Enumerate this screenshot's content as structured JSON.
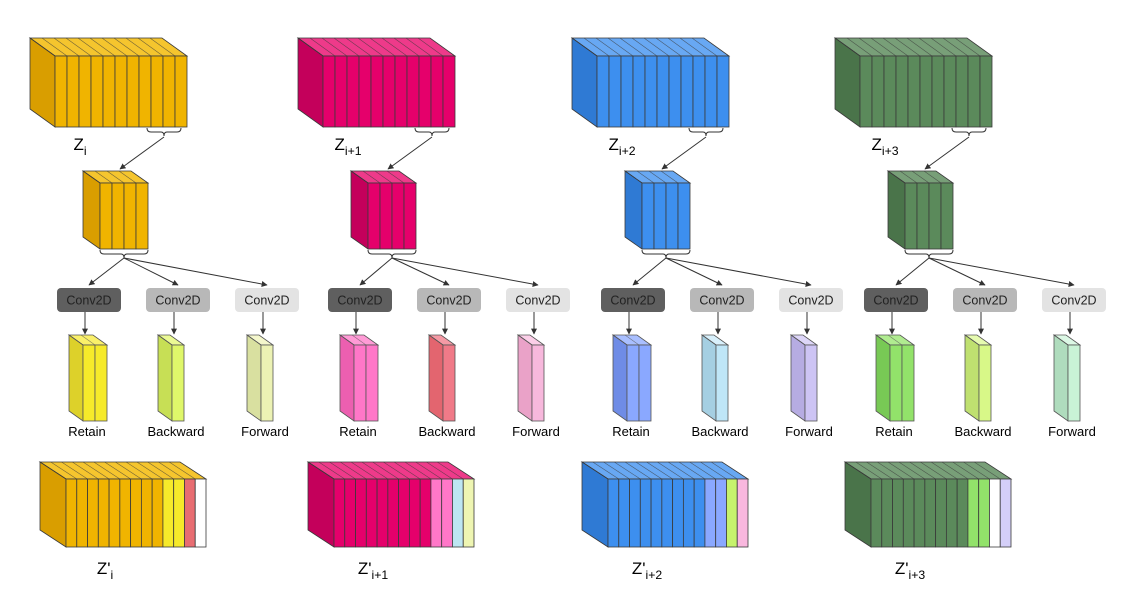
{
  "conv_label": "Conv2D",
  "branch_labels": [
    "Retain",
    "Backward",
    "Forward"
  ],
  "button_colors": [
    "#5f5f5f",
    "#b8b8b8",
    "#e3e3e3"
  ],
  "columns": [
    {
      "id": "z-i",
      "z_base": "Z",
      "z_sub": "i",
      "out_base": "Z'",
      "out_sub": "i",
      "color": "#f0b400",
      "side": "#d99e00",
      "top": "#f5c52e",
      "branch_colors": [
        "#f6ea2a",
        "#dff76a",
        "#ecf2b4"
      ],
      "branch_side_colors": [
        "#ddd12a",
        "#c7df55",
        "#d9e0a0"
      ],
      "branch_top_colors": [
        "#faf06a",
        "#ebfa94",
        "#f4f7cc"
      ],
      "out_extra_colors": [
        "#f6ea2a",
        "#f6ea2a",
        "#e86d72",
        "#ffffff"
      ]
    },
    {
      "id": "z-i1",
      "z_base": "Z",
      "z_sub": "i+1",
      "out_base": "Z'",
      "out_sub": "i+1",
      "color": "#e5006b",
      "side": "#c4005b",
      "top": "#ee3a8a",
      "branch_colors": [
        "#ff77c8",
        "#f07a88",
        "#f7b8dc"
      ],
      "branch_side_colors": [
        "#ec5fb0",
        "#e3656f",
        "#eaa2c8"
      ],
      "branch_top_colors": [
        "#ff9bd6",
        "#f59aa5",
        "#fbcfe8"
      ],
      "out_extra_colors": [
        "#ff77c8",
        "#ff77c8",
        "#bde6f2",
        "#eef5b2"
      ]
    },
    {
      "id": "z-i2",
      "z_base": "Z",
      "z_sub": "i+2",
      "out_base": "Z'",
      "out_sub": "i+2",
      "color": "#3d8fef",
      "side": "#2f7ad4",
      "top": "#68a8f3",
      "branch_colors": [
        "#8aa8ff",
        "#bfe6f7",
        "#cdc4f4"
      ],
      "branch_side_colors": [
        "#6f8ce6",
        "#a5cfe2",
        "#b6ace2"
      ],
      "branch_top_colors": [
        "#a9bfff",
        "#d8f0fb",
        "#ddd6f8"
      ],
      "out_extra_colors": [
        "#8aa8ff",
        "#8aa8ff",
        "#c6f26c",
        "#f9b7de"
      ]
    },
    {
      "id": "z-i3",
      "z_base": "Z",
      "z_sub": "i+3",
      "out_base": "Z'",
      "out_sub": "i+3",
      "color": "#5b8a5b",
      "side": "#4a744a",
      "top": "#789f78",
      "branch_colors": [
        "#92e26a",
        "#d8f888",
        "#c9f3d6"
      ],
      "branch_side_colors": [
        "#78c955",
        "#bfe070",
        "#afdcbd"
      ],
      "branch_top_colors": [
        "#b0ec90",
        "#e6fbb0",
        "#dcf8e5"
      ],
      "out_extra_colors": [
        "#92e26a",
        "#92e26a",
        "#ffffff",
        "#d4cff8"
      ]
    }
  ]
}
